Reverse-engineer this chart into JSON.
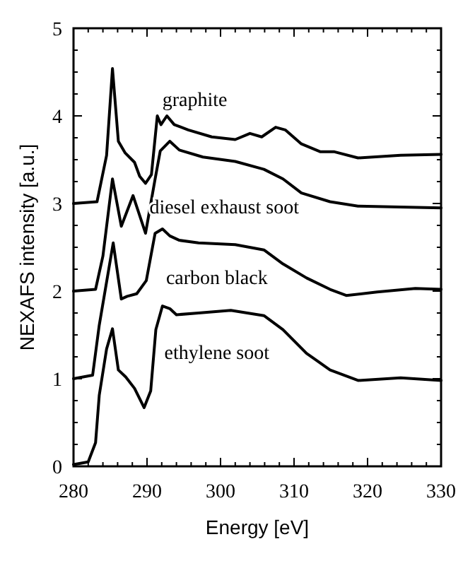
{
  "chart_data": {
    "type": "line",
    "xlabel": "Energy [eV]",
    "ylabel": "NEXAFS intensity [a.u.]",
    "xlim": [
      280,
      330
    ],
    "ylim": [
      0,
      5
    ],
    "xticks": [
      280,
      {
        "value": 282,
        "label": null
      },
      {
        "value": 284,
        "label": null
      },
      {
        "value": 286,
        "label": null
      },
      {
        "value": 288,
        "label": null
      },
      290,
      {
        "value": 292,
        "label": null
      },
      {
        "value": 294,
        "label": null
      },
      {
        "value": 296,
        "label": null
      },
      {
        "value": 298,
        "label": null
      },
      300,
      {
        "value": 302,
        "label": null
      },
      {
        "value": 304,
        "label": null
      },
      {
        "value": 306,
        "label": null
      },
      {
        "value": 308,
        "label": null
      },
      310,
      {
        "value": 312,
        "label": null
      },
      {
        "value": 314,
        "label": null
      },
      {
        "value": 316,
        "label": null
      },
      {
        "value": 318,
        "label": null
      },
      320,
      {
        "value": 322,
        "label": null
      },
      {
        "value": 324,
        "label": null
      },
      {
        "value": 326,
        "label": null
      },
      {
        "value": 328,
        "label": null
      },
      330
    ],
    "yticks": [
      0,
      {
        "value": 0.25,
        "label": null
      },
      {
        "value": 0.5,
        "label": null
      },
      {
        "value": 0.75,
        "label": null
      },
      1,
      {
        "value": 1.25,
        "label": null
      },
      {
        "value": 1.5,
        "label": null
      },
      {
        "value": 1.75,
        "label": null
      },
      2,
      {
        "value": 2.25,
        "label": null
      },
      {
        "value": 2.5,
        "label": null
      },
      {
        "value": 2.75,
        "label": null
      },
      3,
      {
        "value": 3.25,
        "label": null
      },
      {
        "value": 3.5,
        "label": null
      },
      {
        "value": 3.75,
        "label": null
      },
      4,
      {
        "value": 4.25,
        "label": null
      },
      {
        "value": 4.5,
        "label": null
      },
      {
        "value": 4.75,
        "label": null
      },
      5
    ],
    "grid": false,
    "marker": "none",
    "line_style": "solid",
    "series": [
      {
        "name": "graphite",
        "color": "#000000",
        "x": [
          280,
          283.2,
          284.5,
          285.3,
          286.1,
          287,
          288.3,
          289,
          289.8,
          290.6,
          291.4,
          291.9,
          292.7,
          293.7,
          295.6,
          298.8,
          302,
          304,
          305.6,
          307.5,
          308.8,
          311,
          313.6,
          315.5,
          318.7,
          324.5,
          330
        ],
        "values": [
          3.0,
          3.02,
          3.55,
          4.54,
          3.71,
          3.58,
          3.47,
          3.31,
          3.23,
          3.33,
          4.0,
          3.9,
          4.0,
          3.9,
          3.84,
          3.76,
          3.73,
          3.8,
          3.76,
          3.87,
          3.84,
          3.68,
          3.59,
          3.59,
          3.52,
          3.55,
          3.56
        ]
      },
      {
        "name": "diesel exhaust soot",
        "color": "#000000",
        "x": [
          280,
          283,
          284,
          285.3,
          286.5,
          288.1,
          289.8,
          291.1,
          291.8,
          293.1,
          294.4,
          297.6,
          302,
          305.9,
          308.5,
          311,
          314.9,
          318.7,
          330
        ],
        "values": [
          2.0,
          2.02,
          2.4,
          3.28,
          2.74,
          3.09,
          2.66,
          3.28,
          3.6,
          3.71,
          3.61,
          3.53,
          3.48,
          3.39,
          3.28,
          3.12,
          3.02,
          2.97,
          2.95
        ]
      },
      {
        "name": "carbon black",
        "color": "#000000",
        "x": [
          280,
          282.6,
          283.5,
          285.4,
          286.5,
          287.3,
          288.6,
          289.9,
          291.1,
          292.1,
          293.1,
          294.4,
          297,
          302,
          305.9,
          308.5,
          311.7,
          314.9,
          317.1,
          321.3,
          326.5,
          330
        ],
        "values": [
          1.0,
          1.04,
          1.61,
          2.55,
          1.91,
          1.94,
          1.97,
          2.12,
          2.66,
          2.71,
          2.63,
          2.58,
          2.55,
          2.53,
          2.47,
          2.31,
          2.15,
          2.02,
          1.95,
          1.99,
          2.03,
          2.02
        ]
      },
      {
        "name": "ethylene soot",
        "color": "#000000",
        "x": [
          280,
          282,
          283,
          283.5,
          284.5,
          285.3,
          286.1,
          287.1,
          288.3,
          289.6,
          290.5,
          291.2,
          292.1,
          293.1,
          294,
          297,
          301.4,
          305.9,
          308.5,
          311.7,
          314.9,
          318.7,
          324.5,
          330
        ],
        "values": [
          0.02,
          0.05,
          0.27,
          0.81,
          1.34,
          1.57,
          1.1,
          1.02,
          0.89,
          0.67,
          0.86,
          1.56,
          1.83,
          1.8,
          1.73,
          1.75,
          1.78,
          1.72,
          1.56,
          1.29,
          1.1,
          0.98,
          1.01,
          0.98
        ]
      }
    ]
  }
}
